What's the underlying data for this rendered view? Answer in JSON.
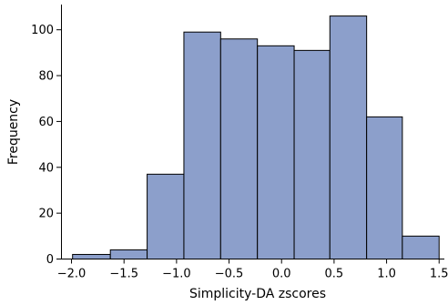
{
  "chart_data": {
    "type": "bar",
    "xlabel": "Simplicity-DA zscores",
    "ylabel": "Frequency",
    "title": "",
    "bar_color": "#8c9fcb",
    "edge_color": "#000000",
    "xlim": [
      -2.1,
      1.55
    ],
    "ylim": [
      0,
      111
    ],
    "xticks": [
      -2.0,
      -1.5,
      -1.0,
      -0.5,
      0.0,
      0.5,
      1.0,
      1.5
    ],
    "xtick_labels": [
      "−2.0",
      "−1.5",
      "−1.0",
      "−0.5",
      "0.0",
      "0.5",
      "1.0",
      "1.5"
    ],
    "yticks": [
      0,
      20,
      40,
      60,
      80,
      100
    ],
    "ytick_labels": [
      "0",
      "20",
      "40",
      "60",
      "80",
      "100"
    ],
    "bins": [
      {
        "x0": -1.99,
        "x1": -1.63,
        "count": 2
      },
      {
        "x0": -1.63,
        "x1": -1.28,
        "count": 4
      },
      {
        "x0": -1.28,
        "x1": -0.93,
        "count": 37
      },
      {
        "x0": -0.93,
        "x1": -0.58,
        "count": 99
      },
      {
        "x0": -0.58,
        "x1": -0.23,
        "count": 96
      },
      {
        "x0": -0.23,
        "x1": 0.12,
        "count": 93
      },
      {
        "x0": 0.12,
        "x1": 0.46,
        "count": 91
      },
      {
        "x0": 0.46,
        "x1": 0.81,
        "count": 106
      },
      {
        "x0": 0.81,
        "x1": 1.15,
        "count": 62
      },
      {
        "x0": 1.15,
        "x1": 1.5,
        "count": 10
      }
    ]
  }
}
